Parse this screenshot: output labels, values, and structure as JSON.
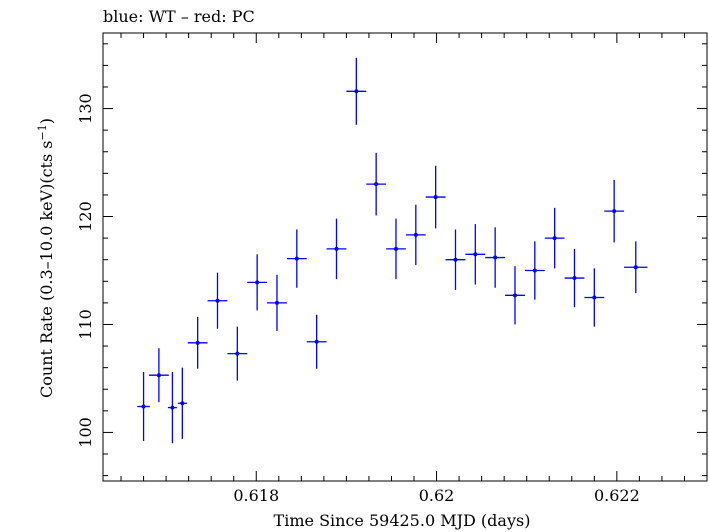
{
  "chart_data": {
    "type": "scatter",
    "title": "blue: WT – red: PC",
    "xlabel": "Time Since 59425.0 MJD (days)",
    "ylabel": "Count Rate (0.3–10.0 keV)(cts s",
    "ylabel_sup": "−1",
    "ylabel_tail": ")",
    "xlim": [
      0.6163,
      0.623
    ],
    "ylim": [
      95.5,
      137.0
    ],
    "x_ticks": [
      0.618,
      0.62,
      0.622
    ],
    "x_tick_labels": [
      "0.618",
      "0.62",
      "0.622"
    ],
    "y_ticks": [
      100,
      110,
      120,
      130
    ],
    "y_tick_labels": [
      "100",
      "110",
      "120",
      "130"
    ],
    "grid": false,
    "series": [
      {
        "color": "#0000ff",
        "points": [
          {
            "x": 0.61675,
            "xerr": 7e-05,
            "y": 102.4,
            "yerr": 3.2
          },
          {
            "x": 0.61692,
            "xerr": 0.00011,
            "y": 105.3,
            "yerr": 2.5
          },
          {
            "x": 0.61707,
            "xerr": 5e-05,
            "y": 102.3,
            "yerr": 3.3
          },
          {
            "x": 0.61718,
            "xerr": 5e-05,
            "y": 102.7,
            "yerr": 3.3
          },
          {
            "x": 0.61735,
            "xerr": 0.00011,
            "y": 108.3,
            "yerr": 2.4
          },
          {
            "x": 0.61757,
            "xerr": 0.00011,
            "y": 112.2,
            "yerr": 2.6
          },
          {
            "x": 0.61779,
            "xerr": 0.00011,
            "y": 107.3,
            "yerr": 2.5
          },
          {
            "x": 0.61801,
            "xerr": 0.00011,
            "y": 113.9,
            "yerr": 2.6
          },
          {
            "x": 0.61823,
            "xerr": 0.00011,
            "y": 112.0,
            "yerr": 2.6
          },
          {
            "x": 0.61845,
            "xerr": 0.00011,
            "y": 116.1,
            "yerr": 2.7
          },
          {
            "x": 0.61867,
            "xerr": 0.00011,
            "y": 108.4,
            "yerr": 2.5
          },
          {
            "x": 0.61889,
            "xerr": 0.00011,
            "y": 117.0,
            "yerr": 2.8
          },
          {
            "x": 0.61911,
            "xerr": 0.00011,
            "y": 131.6,
            "yerr": 3.1
          },
          {
            "x": 0.61933,
            "xerr": 0.00011,
            "y": 123.0,
            "yerr": 2.9
          },
          {
            "x": 0.61955,
            "xerr": 0.00011,
            "y": 117.0,
            "yerr": 2.8
          },
          {
            "x": 0.61977,
            "xerr": 0.00011,
            "y": 118.3,
            "yerr": 2.8
          },
          {
            "x": 0.61999,
            "xerr": 0.00011,
            "y": 121.8,
            "yerr": 2.9
          },
          {
            "x": 0.62021,
            "xerr": 0.00011,
            "y": 116.0,
            "yerr": 2.8
          },
          {
            "x": 0.62043,
            "xerr": 0.00011,
            "y": 116.5,
            "yerr": 2.8
          },
          {
            "x": 0.62065,
            "xerr": 0.00011,
            "y": 116.2,
            "yerr": 2.8
          },
          {
            "x": 0.62087,
            "xerr": 0.00011,
            "y": 112.7,
            "yerr": 2.7
          },
          {
            "x": 0.62109,
            "xerr": 0.00011,
            "y": 115.0,
            "yerr": 2.7
          },
          {
            "x": 0.62131,
            "xerr": 0.00011,
            "y": 118.0,
            "yerr": 2.8
          },
          {
            "x": 0.62153,
            "xerr": 0.00011,
            "y": 114.3,
            "yerr": 2.7
          },
          {
            "x": 0.62175,
            "xerr": 0.00011,
            "y": 112.5,
            "yerr": 2.7
          },
          {
            "x": 0.62197,
            "xerr": 0.00011,
            "y": 120.5,
            "yerr": 2.9
          },
          {
            "x": 0.62221,
            "xerr": 0.00013,
            "y": 115.3,
            "yerr": 2.4
          }
        ]
      }
    ]
  }
}
